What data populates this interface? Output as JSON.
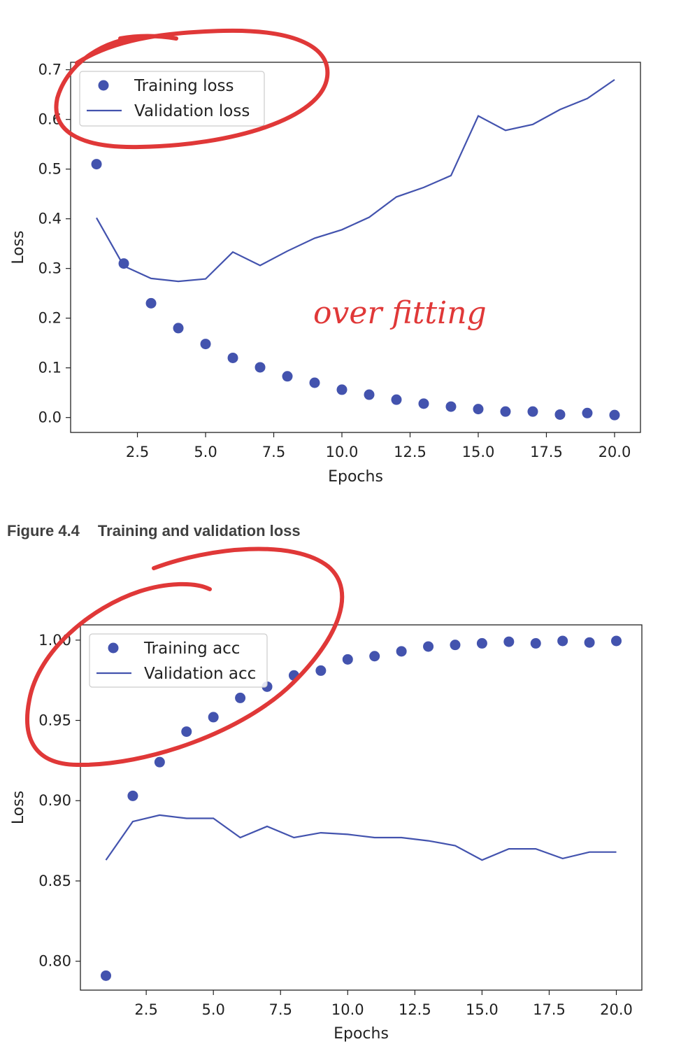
{
  "colors": {
    "series": "#4353ae",
    "annotation": "#e03838",
    "caption": "#404040"
  },
  "caption": {
    "number": "Figure 4.4",
    "text": "Training and validation loss"
  },
  "annotation_text": "over fitting",
  "chart_data": [
    {
      "type": "scatter+line",
      "title": "",
      "xlabel": "Epochs",
      "ylabel": "Loss",
      "xlim": [
        0.05,
        20.95
      ],
      "ylim": [
        -0.03,
        0.715
      ],
      "xticks": [
        2.5,
        5.0,
        7.5,
        10.0,
        12.5,
        15.0,
        17.5,
        20.0
      ],
      "yticks": [
        0.0,
        0.1,
        0.2,
        0.3,
        0.4,
        0.5,
        0.6,
        0.7
      ],
      "y_decimals": 1,
      "legend": "upper-left",
      "grid": false,
      "series": [
        {
          "name": "Training loss",
          "style": "dots",
          "x": [
            1,
            2,
            3,
            4,
            5,
            6,
            7,
            8,
            9,
            10,
            11,
            12,
            13,
            14,
            15,
            16,
            17,
            18,
            19,
            20
          ],
          "y": [
            0.51,
            0.31,
            0.23,
            0.18,
            0.148,
            0.12,
            0.101,
            0.083,
            0.07,
            0.056,
            0.046,
            0.036,
            0.028,
            0.022,
            0.017,
            0.012,
            0.012,
            0.006,
            0.009,
            0.005
          ]
        },
        {
          "name": "Validation loss",
          "style": "line",
          "x": [
            1,
            2,
            3,
            4,
            5,
            6,
            7,
            8,
            9,
            10,
            11,
            12,
            13,
            14,
            15,
            16,
            17,
            18,
            19,
            20
          ],
          "y": [
            0.402,
            0.305,
            0.28,
            0.274,
            0.279,
            0.333,
            0.306,
            0.335,
            0.361,
            0.378,
            0.403,
            0.444,
            0.463,
            0.487,
            0.607,
            0.578,
            0.59,
            0.62,
            0.642,
            0.68
          ]
        }
      ]
    },
    {
      "type": "scatter+line",
      "title": "",
      "xlabel": "Epochs",
      "ylabel": "Loss",
      "xlim": [
        0.05,
        20.95
      ],
      "ylim": [
        0.782,
        1.0095
      ],
      "xticks": [
        2.5,
        5.0,
        7.5,
        10.0,
        12.5,
        15.0,
        17.5,
        20.0
      ],
      "yticks": [
        0.8,
        0.85,
        0.9,
        0.95,
        1.0
      ],
      "y_decimals": 2,
      "legend": "upper-left",
      "grid": false,
      "series": [
        {
          "name": "Training acc",
          "style": "dots",
          "x": [
            1,
            2,
            3,
            4,
            5,
            6,
            7,
            8,
            9,
            10,
            11,
            12,
            13,
            14,
            15,
            16,
            17,
            18,
            19,
            20
          ],
          "y": [
            0.791,
            0.903,
            0.924,
            0.943,
            0.952,
            0.964,
            0.971,
            0.978,
            0.981,
            0.988,
            0.99,
            0.993,
            0.996,
            0.997,
            0.998,
            0.999,
            0.998,
            0.9995,
            0.9985,
            0.9995
          ]
        },
        {
          "name": "Validation acc",
          "style": "line",
          "x": [
            1,
            2,
            3,
            4,
            5,
            6,
            7,
            8,
            9,
            10,
            11,
            12,
            13,
            14,
            15,
            16,
            17,
            18,
            19,
            20
          ],
          "y": [
            0.863,
            0.887,
            0.891,
            0.889,
            0.889,
            0.877,
            0.884,
            0.877,
            0.88,
            0.879,
            0.877,
            0.877,
            0.875,
            0.872,
            0.863,
            0.87,
            0.87,
            0.864,
            0.868,
            0.868
          ]
        }
      ]
    }
  ]
}
